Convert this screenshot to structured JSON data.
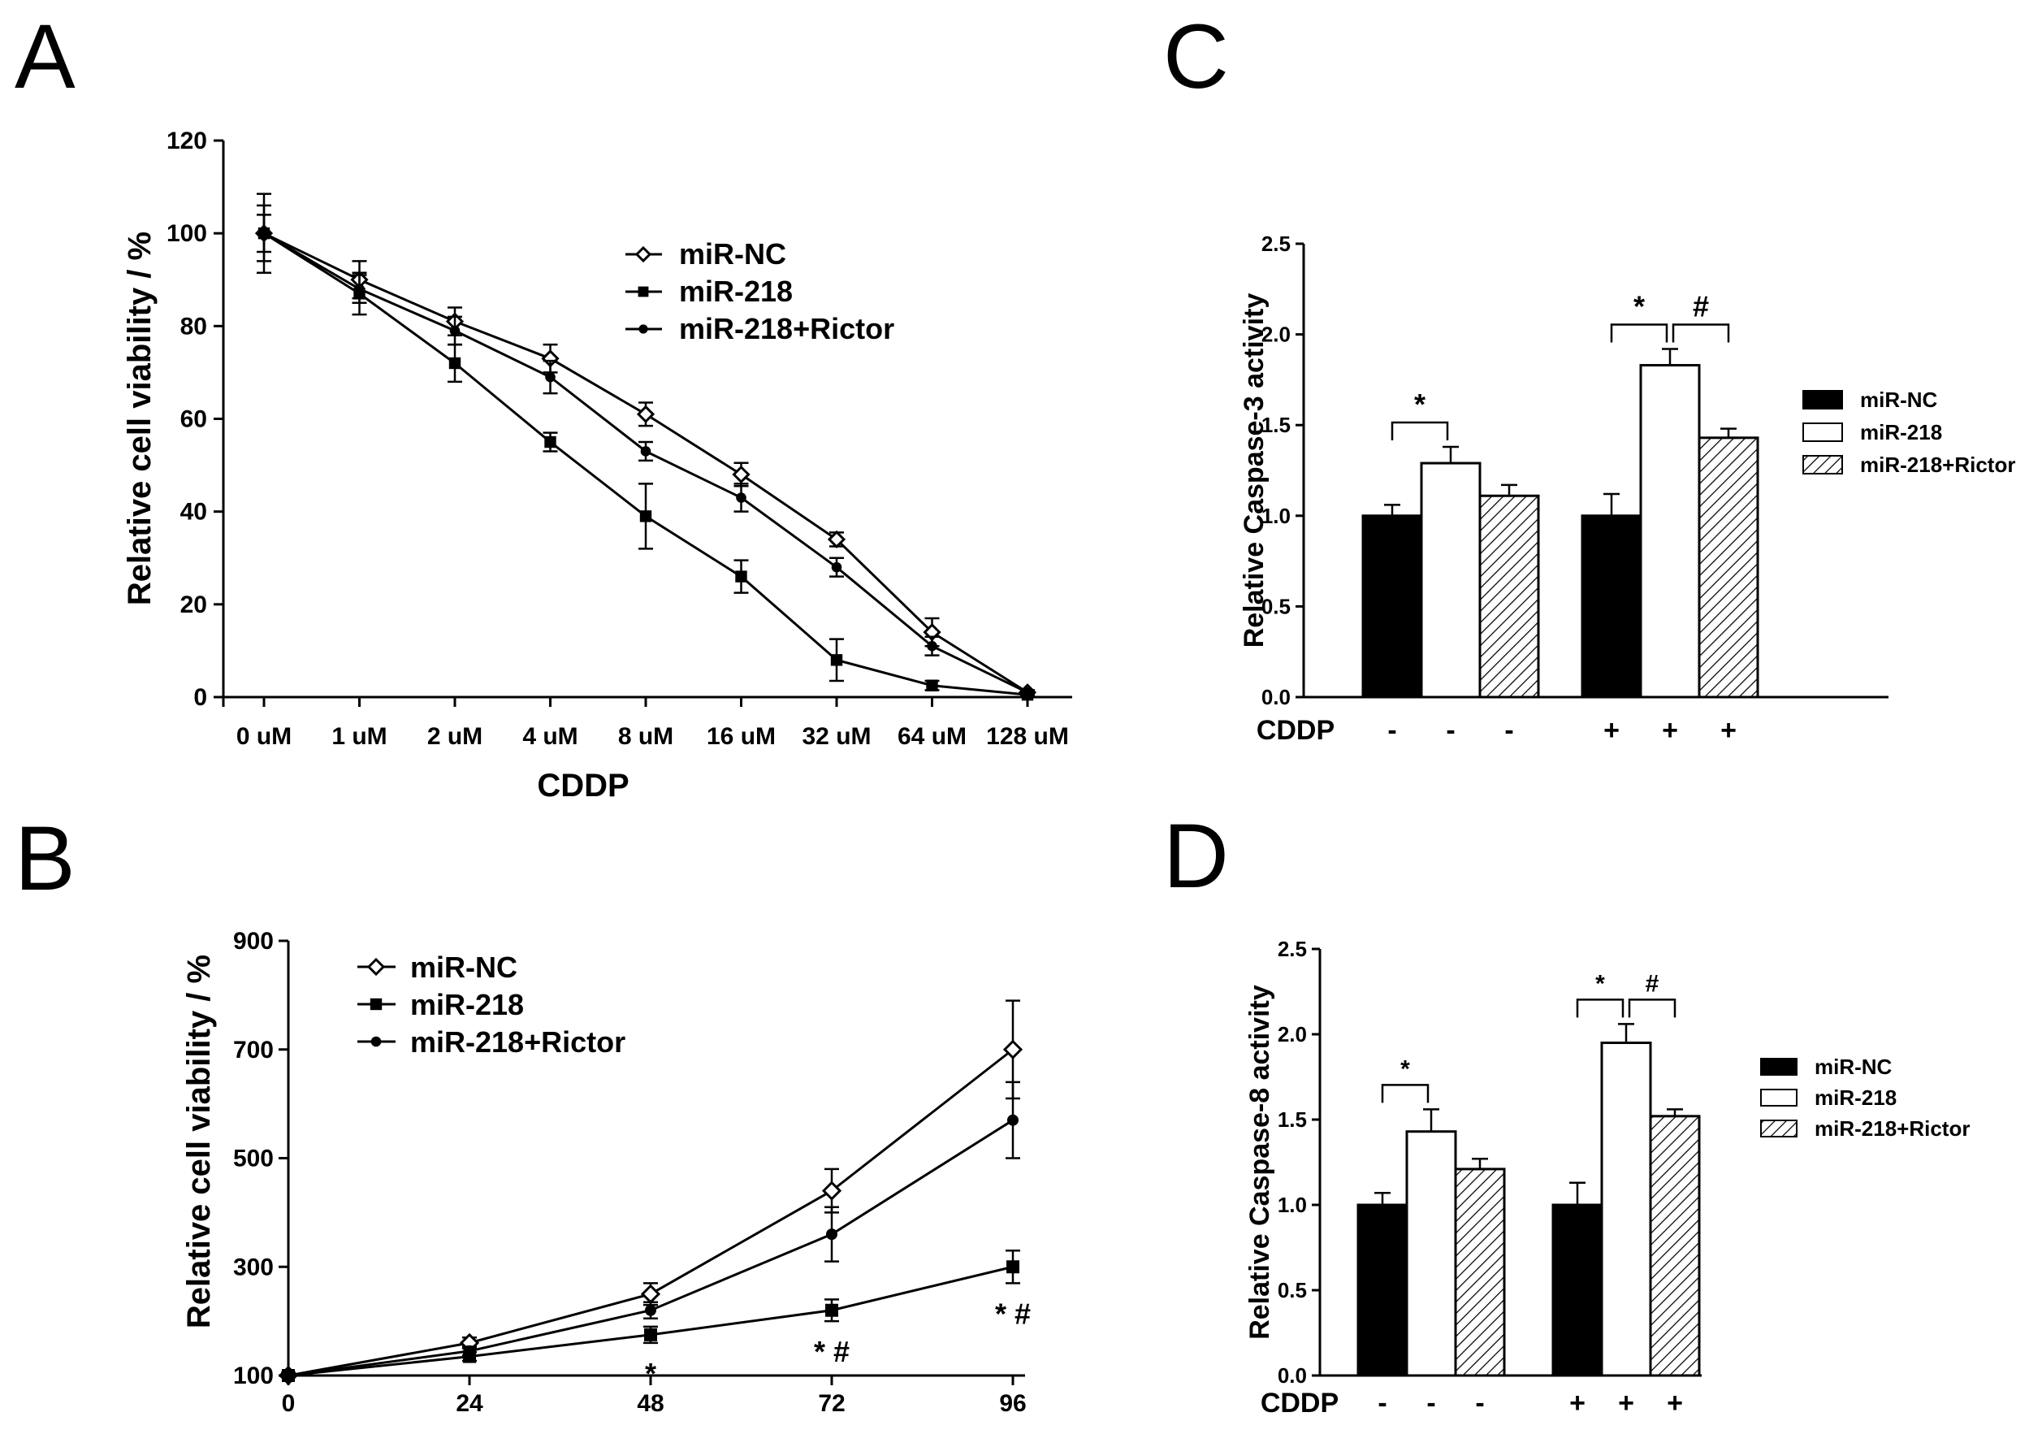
{
  "chart_data": [
    {
      "panel": "A",
      "type": "line",
      "xlabel": "CDDP",
      "ylabel": "Relative cell viability / %",
      "ylim": [
        0,
        120
      ],
      "yticks": [
        0,
        20,
        40,
        60,
        80,
        100,
        120
      ],
      "categories": [
        "0 uM",
        "1 uM",
        "2 uM",
        "4 uM",
        "8 uM",
        "16 uM",
        "32 uM",
        "64 uM",
        "128 uM"
      ],
      "legend_position": "top-right",
      "series": [
        {
          "name": "miR-NC",
          "marker": "diamond-open",
          "values": [
            100,
            90,
            81,
            73,
            61,
            48,
            34,
            14,
            1
          ],
          "errors": [
            6,
            4,
            3,
            3,
            2.5,
            2.5,
            1.5,
            3,
            0.5
          ]
        },
        {
          "name": "miR-218",
          "marker": "square",
          "values": [
            100,
            87,
            72,
            55,
            39,
            26,
            8,
            2.5,
            0.5
          ],
          "errors": [
            8.5,
            4.5,
            4,
            2,
            7,
            3.5,
            4.5,
            1,
            0.5
          ]
        },
        {
          "name": "miR-218+Rictor",
          "marker": "dot",
          "values": [
            100,
            88,
            79,
            69,
            53,
            43,
            28,
            11,
            1
          ],
          "errors": [
            4,
            3,
            3,
            3.5,
            2,
            3,
            2,
            2,
            0.5
          ]
        }
      ]
    },
    {
      "panel": "B",
      "type": "line",
      "xlabel": "",
      "ylabel": "Relative cell viability / %",
      "ylim": [
        100,
        900
      ],
      "yticks": [
        100,
        300,
        500,
        700,
        900
      ],
      "x": [
        0,
        24,
        48,
        72,
        96
      ],
      "legend_position": "top-left",
      "series": [
        {
          "name": "miR-NC",
          "marker": "diamond-open",
          "values": [
            100,
            160,
            250,
            440,
            700
          ],
          "errors": [
            5,
            10,
            20,
            40,
            90
          ]
        },
        {
          "name": "miR-218",
          "marker": "square",
          "values": [
            100,
            135,
            175,
            220,
            300
          ],
          "errors": [
            5,
            8,
            15,
            20,
            30
          ]
        },
        {
          "name": "miR-218+Rictor",
          "marker": "dot",
          "values": [
            100,
            145,
            220,
            360,
            570
          ],
          "errors": [
            5,
            8,
            15,
            50,
            70
          ]
        }
      ],
      "annotations": [
        {
          "x": 48,
          "text": "*"
        },
        {
          "x": 72,
          "text": "*#"
        },
        {
          "x": 96,
          "text": "*#"
        }
      ]
    },
    {
      "panel": "C",
      "type": "bar",
      "ylabel": "Relative Caspase-3 activity",
      "ylim": [
        0,
        2.5
      ],
      "yticks": [
        "0.0",
        "0.5",
        "1.0",
        "1.5",
        "2.0",
        "2.5"
      ],
      "group_label": "CDDP",
      "groups": [
        "-",
        "+"
      ],
      "legend_position": "right",
      "series": [
        {
          "name": "miR-NC",
          "fill": "solid-black",
          "values": [
            1.0,
            1.0
          ],
          "errors": [
            0.06,
            0.12
          ]
        },
        {
          "name": "miR-218",
          "fill": "white",
          "values": [
            1.29,
            1.83
          ],
          "errors": [
            0.09,
            0.09
          ]
        },
        {
          "name": "miR-218+Rictor",
          "fill": "hatched",
          "values": [
            1.11,
            1.43
          ],
          "errors": [
            0.06,
            0.05
          ]
        }
      ],
      "annotations": [
        {
          "group": 0,
          "from": 0,
          "to": 1,
          "text": "*"
        },
        {
          "group": 1,
          "from": 0,
          "to": 1,
          "text": "*"
        },
        {
          "group": 1,
          "from": 1,
          "to": 2,
          "text": "#"
        }
      ]
    },
    {
      "panel": "D",
      "type": "bar",
      "ylabel": "Relative Caspase-8 activity",
      "ylim": [
        0,
        2.5
      ],
      "yticks": [
        "0.0",
        "0.5",
        "1.0",
        "1.5",
        "2.0",
        "2.5"
      ],
      "group_label": "CDDP",
      "groups": [
        "-",
        "+"
      ],
      "legend_position": "right",
      "series": [
        {
          "name": "miR-NC",
          "fill": "solid-black",
          "values": [
            1.0,
            1.0
          ],
          "errors": [
            0.07,
            0.13
          ]
        },
        {
          "name": "miR-218",
          "fill": "white",
          "values": [
            1.43,
            1.95
          ],
          "errors": [
            0.13,
            0.11
          ]
        },
        {
          "name": "miR-218+Rictor",
          "fill": "hatched",
          "values": [
            1.21,
            1.52
          ],
          "errors": [
            0.06,
            0.04
          ]
        }
      ],
      "annotations": [
        {
          "group": 0,
          "from": 0,
          "to": 1,
          "text": "*"
        },
        {
          "group": 1,
          "from": 0,
          "to": 1,
          "text": "*"
        },
        {
          "group": 1,
          "from": 1,
          "to": 2,
          "text": "#"
        }
      ]
    }
  ],
  "panel_labels": [
    "A",
    "B",
    "C",
    "D"
  ]
}
